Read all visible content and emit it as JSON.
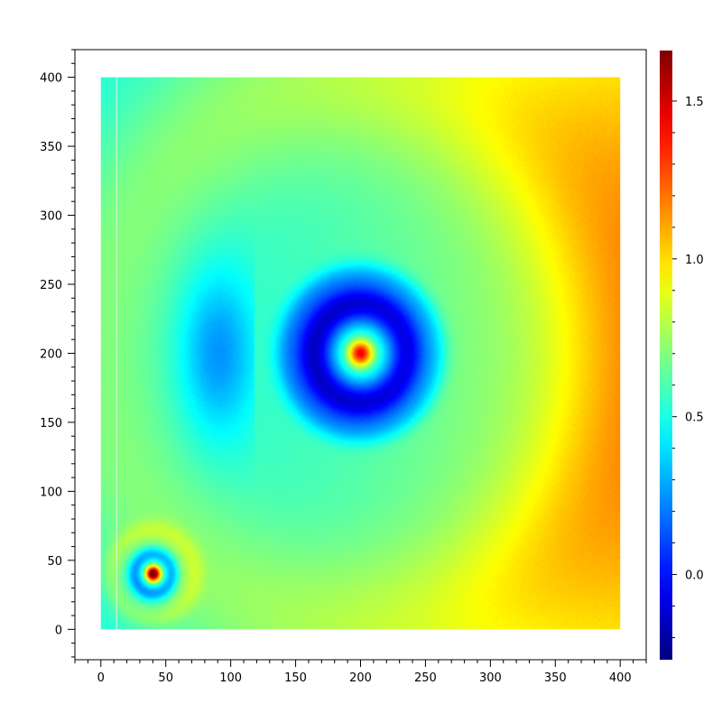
{
  "chart_data": {
    "type": "heatmap",
    "title": "",
    "xlabel": "",
    "ylabel": "",
    "xlim": [
      -20,
      420
    ],
    "ylim": [
      -22,
      420
    ],
    "data_extent": {
      "x": [
        0,
        400
      ],
      "y": [
        0,
        400
      ]
    },
    "x_ticks": [
      0,
      50,
      100,
      150,
      200,
      250,
      300,
      350,
      400
    ],
    "y_ticks": [
      0,
      50,
      100,
      150,
      200,
      250,
      300,
      350,
      400
    ],
    "x_tick_labels": [
      "0",
      "50",
      "100",
      "150",
      "200",
      "250",
      "300",
      "350",
      "400"
    ],
    "y_tick_labels": [
      "0",
      "50",
      "100",
      "150",
      "200",
      "250",
      "300",
      "350",
      "400"
    ],
    "grid": false,
    "colorbar": {
      "range": [
        -0.27,
        1.66
      ],
      "ticks": [
        0.0,
        0.5,
        1.0,
        1.5
      ],
      "tick_labels": [
        "0.0",
        "0.5",
        "1.0",
        "1.5"
      ],
      "colormap": "jet"
    },
    "features": [
      {
        "kind": "peak",
        "x": 40,
        "y": 40,
        "value": 1.5
      },
      {
        "kind": "ring",
        "x": 40,
        "y": 40,
        "radius": 10,
        "value": 0.25
      },
      {
        "kind": "peak",
        "x": 200,
        "y": 200,
        "value": 1.2
      },
      {
        "kind": "ring",
        "x": 200,
        "y": 200,
        "radius": 35,
        "value": -0.1
      },
      {
        "kind": "trough",
        "x": 90,
        "y": 200,
        "value": 0.1
      },
      {
        "kind": "gradient",
        "direction": "increasing toward right",
        "value_left": 0.5,
        "value_right": 1.2
      }
    ],
    "artifacts": [
      {
        "kind": "vertical-line",
        "x": 12,
        "color": "#e6f0e6"
      }
    ]
  }
}
